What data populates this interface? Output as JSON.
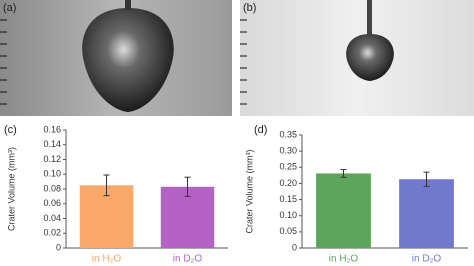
{
  "photo_labels": [
    "(a)",
    "(b)"
  ],
  "chart_data": [
    {
      "type": "bar",
      "panel_label": "(c)",
      "y_label": "Crater Volume (mm³)",
      "categories": [
        "in H₂O",
        "in D₂O"
      ],
      "values": [
        0.085,
        0.083
      ],
      "errors": [
        0.014,
        0.013
      ],
      "colors": [
        "#f9a86a",
        "#b463c4"
      ],
      "ylim": [
        0,
        0.16
      ],
      "yticks": [
        0,
        0.02,
        0.04,
        0.06,
        0.08,
        {
          "value": 0.1,
          "label": "0.10"
        },
        0.12,
        0.14,
        0.16
      ]
    },
    {
      "type": "bar",
      "panel_label": "(d)",
      "y_label": "Crater Volume (mm³)",
      "categories": [
        "in H₂O",
        "in D₂O"
      ],
      "values": [
        0.231,
        0.213
      ],
      "errors": [
        0.012,
        0.022
      ],
      "colors": [
        "#5da55d",
        "#7079cc"
      ],
      "ylim": [
        0,
        0.35
      ],
      "yticks": [
        0,
        0.05,
        {
          "value": 0.1,
          "label": "0.10"
        },
        0.15,
        {
          "value": 0.2,
          "label": "0.20"
        },
        0.25,
        {
          "value": 0.3,
          "label": "0.30"
        },
        0.35
      ]
    }
  ]
}
